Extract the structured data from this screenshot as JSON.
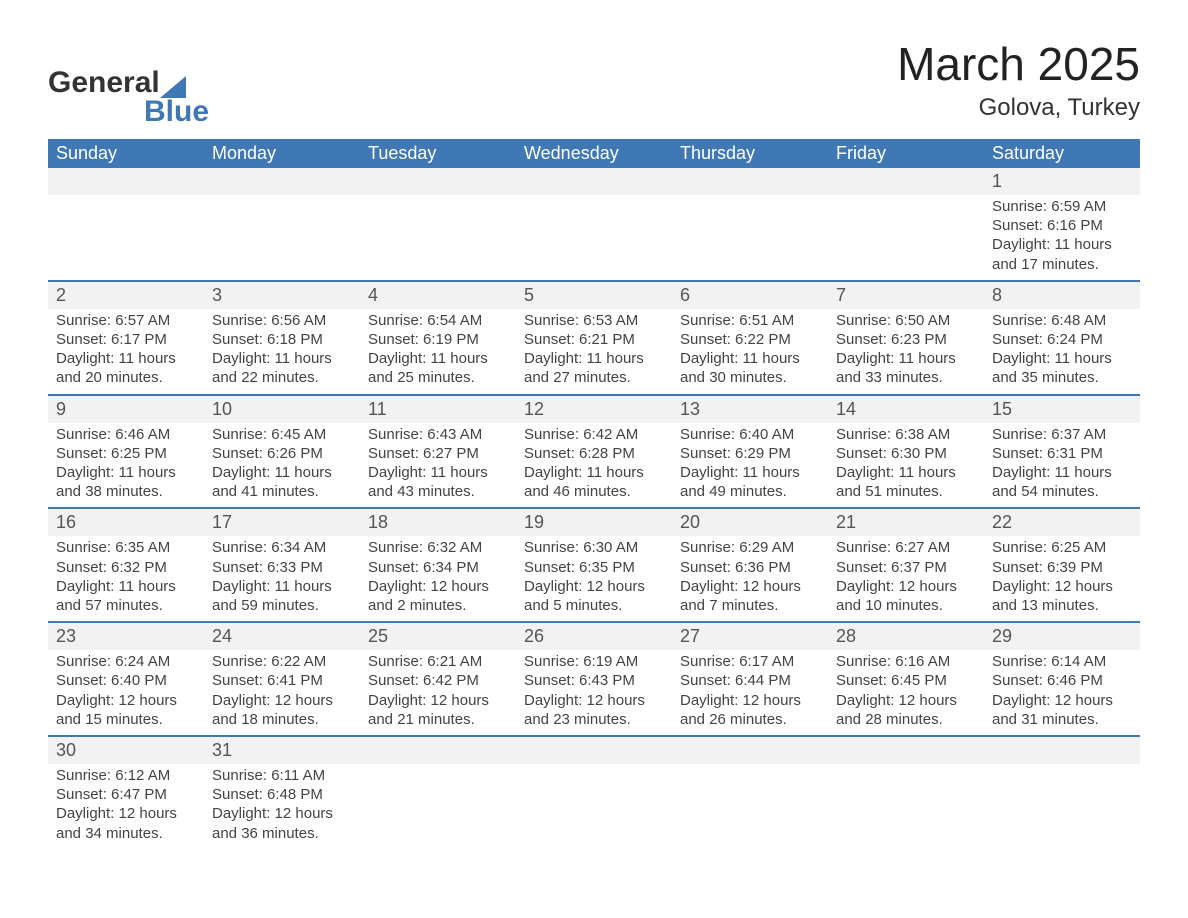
{
  "logo": {
    "word1": "General",
    "word2": "Blue"
  },
  "title": "March 2025",
  "location": "Golova, Turkey",
  "weekdays": [
    "Sunday",
    "Monday",
    "Tuesday",
    "Wednesday",
    "Thursday",
    "Friday",
    "Saturday"
  ],
  "colors": {
    "header_bg": "#3f78b5",
    "header_text": "#ffffff",
    "daynum_bg": "#f2f2f2",
    "row_divider": "#3f78b5",
    "body_text": "#444444",
    "page_bg": "#ffffff"
  },
  "weeks": [
    {
      "nums": [
        "",
        "",
        "",
        "",
        "",
        "",
        "1"
      ],
      "cells": [
        null,
        null,
        null,
        null,
        null,
        null,
        {
          "sunrise": "Sunrise: 6:59 AM",
          "sunset": "Sunset: 6:16 PM",
          "day1": "Daylight: 11 hours",
          "day2": "and 17 minutes."
        }
      ]
    },
    {
      "nums": [
        "2",
        "3",
        "4",
        "5",
        "6",
        "7",
        "8"
      ],
      "cells": [
        {
          "sunrise": "Sunrise: 6:57 AM",
          "sunset": "Sunset: 6:17 PM",
          "day1": "Daylight: 11 hours",
          "day2": "and 20 minutes."
        },
        {
          "sunrise": "Sunrise: 6:56 AM",
          "sunset": "Sunset: 6:18 PM",
          "day1": "Daylight: 11 hours",
          "day2": "and 22 minutes."
        },
        {
          "sunrise": "Sunrise: 6:54 AM",
          "sunset": "Sunset: 6:19 PM",
          "day1": "Daylight: 11 hours",
          "day2": "and 25 minutes."
        },
        {
          "sunrise": "Sunrise: 6:53 AM",
          "sunset": "Sunset: 6:21 PM",
          "day1": "Daylight: 11 hours",
          "day2": "and 27 minutes."
        },
        {
          "sunrise": "Sunrise: 6:51 AM",
          "sunset": "Sunset: 6:22 PM",
          "day1": "Daylight: 11 hours",
          "day2": "and 30 minutes."
        },
        {
          "sunrise": "Sunrise: 6:50 AM",
          "sunset": "Sunset: 6:23 PM",
          "day1": "Daylight: 11 hours",
          "day2": "and 33 minutes."
        },
        {
          "sunrise": "Sunrise: 6:48 AM",
          "sunset": "Sunset: 6:24 PM",
          "day1": "Daylight: 11 hours",
          "day2": "and 35 minutes."
        }
      ]
    },
    {
      "nums": [
        "9",
        "10",
        "11",
        "12",
        "13",
        "14",
        "15"
      ],
      "cells": [
        {
          "sunrise": "Sunrise: 6:46 AM",
          "sunset": "Sunset: 6:25 PM",
          "day1": "Daylight: 11 hours",
          "day2": "and 38 minutes."
        },
        {
          "sunrise": "Sunrise: 6:45 AM",
          "sunset": "Sunset: 6:26 PM",
          "day1": "Daylight: 11 hours",
          "day2": "and 41 minutes."
        },
        {
          "sunrise": "Sunrise: 6:43 AM",
          "sunset": "Sunset: 6:27 PM",
          "day1": "Daylight: 11 hours",
          "day2": "and 43 minutes."
        },
        {
          "sunrise": "Sunrise: 6:42 AM",
          "sunset": "Sunset: 6:28 PM",
          "day1": "Daylight: 11 hours",
          "day2": "and 46 minutes."
        },
        {
          "sunrise": "Sunrise: 6:40 AM",
          "sunset": "Sunset: 6:29 PM",
          "day1": "Daylight: 11 hours",
          "day2": "and 49 minutes."
        },
        {
          "sunrise": "Sunrise: 6:38 AM",
          "sunset": "Sunset: 6:30 PM",
          "day1": "Daylight: 11 hours",
          "day2": "and 51 minutes."
        },
        {
          "sunrise": "Sunrise: 6:37 AM",
          "sunset": "Sunset: 6:31 PM",
          "day1": "Daylight: 11 hours",
          "day2": "and 54 minutes."
        }
      ]
    },
    {
      "nums": [
        "16",
        "17",
        "18",
        "19",
        "20",
        "21",
        "22"
      ],
      "cells": [
        {
          "sunrise": "Sunrise: 6:35 AM",
          "sunset": "Sunset: 6:32 PM",
          "day1": "Daylight: 11 hours",
          "day2": "and 57 minutes."
        },
        {
          "sunrise": "Sunrise: 6:34 AM",
          "sunset": "Sunset: 6:33 PM",
          "day1": "Daylight: 11 hours",
          "day2": "and 59 minutes."
        },
        {
          "sunrise": "Sunrise: 6:32 AM",
          "sunset": "Sunset: 6:34 PM",
          "day1": "Daylight: 12 hours",
          "day2": "and 2 minutes."
        },
        {
          "sunrise": "Sunrise: 6:30 AM",
          "sunset": "Sunset: 6:35 PM",
          "day1": "Daylight: 12 hours",
          "day2": "and 5 minutes."
        },
        {
          "sunrise": "Sunrise: 6:29 AM",
          "sunset": "Sunset: 6:36 PM",
          "day1": "Daylight: 12 hours",
          "day2": "and 7 minutes."
        },
        {
          "sunrise": "Sunrise: 6:27 AM",
          "sunset": "Sunset: 6:37 PM",
          "day1": "Daylight: 12 hours",
          "day2": "and 10 minutes."
        },
        {
          "sunrise": "Sunrise: 6:25 AM",
          "sunset": "Sunset: 6:39 PM",
          "day1": "Daylight: 12 hours",
          "day2": "and 13 minutes."
        }
      ]
    },
    {
      "nums": [
        "23",
        "24",
        "25",
        "26",
        "27",
        "28",
        "29"
      ],
      "cells": [
        {
          "sunrise": "Sunrise: 6:24 AM",
          "sunset": "Sunset: 6:40 PM",
          "day1": "Daylight: 12 hours",
          "day2": "and 15 minutes."
        },
        {
          "sunrise": "Sunrise: 6:22 AM",
          "sunset": "Sunset: 6:41 PM",
          "day1": "Daylight: 12 hours",
          "day2": "and 18 minutes."
        },
        {
          "sunrise": "Sunrise: 6:21 AM",
          "sunset": "Sunset: 6:42 PM",
          "day1": "Daylight: 12 hours",
          "day2": "and 21 minutes."
        },
        {
          "sunrise": "Sunrise: 6:19 AM",
          "sunset": "Sunset: 6:43 PM",
          "day1": "Daylight: 12 hours",
          "day2": "and 23 minutes."
        },
        {
          "sunrise": "Sunrise: 6:17 AM",
          "sunset": "Sunset: 6:44 PM",
          "day1": "Daylight: 12 hours",
          "day2": "and 26 minutes."
        },
        {
          "sunrise": "Sunrise: 6:16 AM",
          "sunset": "Sunset: 6:45 PM",
          "day1": "Daylight: 12 hours",
          "day2": "and 28 minutes."
        },
        {
          "sunrise": "Sunrise: 6:14 AM",
          "sunset": "Sunset: 6:46 PM",
          "day1": "Daylight: 12 hours",
          "day2": "and 31 minutes."
        }
      ]
    },
    {
      "nums": [
        "30",
        "31",
        "",
        "",
        "",
        "",
        ""
      ],
      "cells": [
        {
          "sunrise": "Sunrise: 6:12 AM",
          "sunset": "Sunset: 6:47 PM",
          "day1": "Daylight: 12 hours",
          "day2": "and 34 minutes."
        },
        {
          "sunrise": "Sunrise: 6:11 AM",
          "sunset": "Sunset: 6:48 PM",
          "day1": "Daylight: 12 hours",
          "day2": "and 36 minutes."
        },
        null,
        null,
        null,
        null,
        null
      ]
    }
  ]
}
